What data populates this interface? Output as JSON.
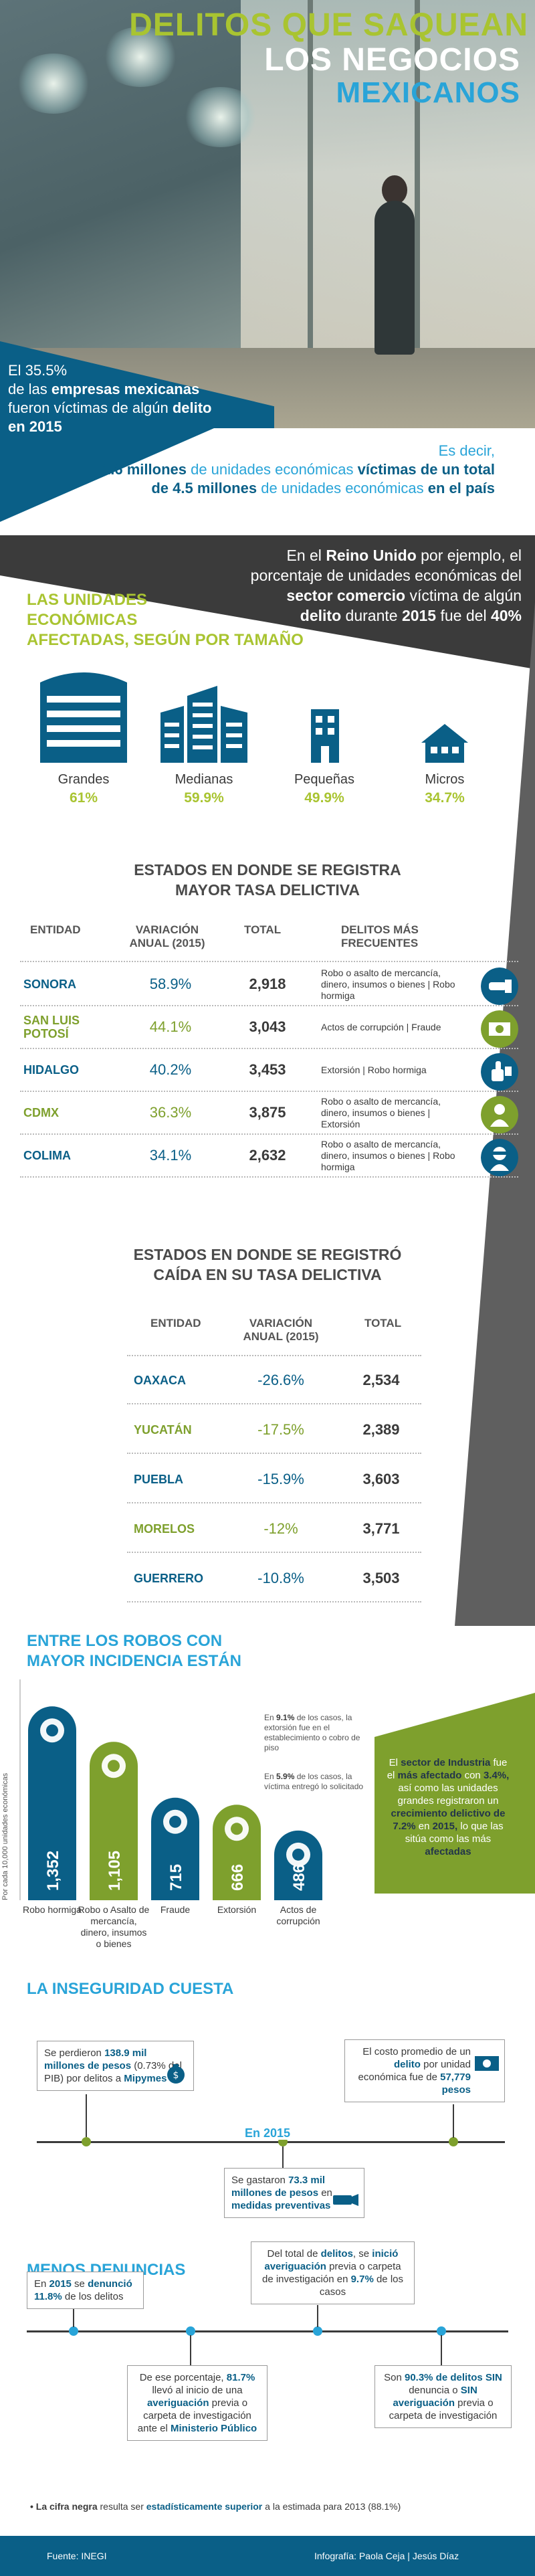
{
  "hero": {
    "title_line1": "DELITOS QUE SAQUEAN",
    "title_line2": "LOS NEGOCIOS",
    "title_line3": "MEXICANOS",
    "stat1_pct": "El 35.5%",
    "stat1_a": "de las ",
    "stat1_b": "empresas mexicanas",
    "stat1_c": " fueron víctimas de algún ",
    "stat1_d": "delito",
    "stat1_e": " en 2015",
    "stat2_a": "Es decir, ",
    "stat2_b": "1.6 millones",
    "stat2_c": " de unidades económicas ",
    "stat2_d": "víctimas de un total de 4.5 millones",
    "stat2_e": " de unidades económicas ",
    "stat2_f": "en el país",
    "stat3_a": "En el ",
    "stat3_b": "Reino Unido",
    "stat3_c": " por ejemplo, el porcentaje de unidades económicas del ",
    "stat3_d": "sector comercio",
    "stat3_e": " víctima de algún ",
    "stat3_f": "delito",
    "stat3_g": " durante ",
    "stat3_h": "2015",
    "stat3_i": " fue del ",
    "stat3_j": "40%"
  },
  "sizes": {
    "title_1": "LAS UNIDADES",
    "title_2": "ECONÓMICAS",
    "title_3": "AFECTADAS, SEGÚN POR TAMAÑO",
    "items": [
      {
        "name": "Grandes",
        "pct": "61%",
        "icon": "large-building-icon"
      },
      {
        "name": "Medianas",
        "pct": "59.9%",
        "icon": "medium-buildings-icon"
      },
      {
        "name": "Pequeñas",
        "pct": "49.9%",
        "icon": "small-building-icon"
      },
      {
        "name": "Micros",
        "pct": "34.7%",
        "icon": "house-icon"
      }
    ]
  },
  "highest": {
    "title_1": "ESTADOS EN DONDE SE REGISTRA",
    "title_2": "MAYOR TASA DELICTIVA",
    "col_entidad": "ENTIDAD",
    "col_var_1": "VARIACIÓN",
    "col_var_2": "ANUAL (2015)",
    "col_total": "TOTAL",
    "col_delitos_1": "DELITOS MÁS",
    "col_delitos_2": "FRECUENTES",
    "rows": [
      {
        "entidad": "SONORA",
        "var": "58.9%",
        "total": "2,918",
        "delitos": "Robo o asalto de mercancía, dinero, insumos o bienes | Robo hormiga",
        "icon": "robber-hand-icon"
      },
      {
        "entidad": "SAN LUIS POTOSÍ",
        "var": "44.1%",
        "total": "3,043",
        "delitos": "Actos de corrupción | Fraude",
        "icon": "money-icon"
      },
      {
        "entidad": "HIDALGO",
        "var": "40.2%",
        "total": "3,453",
        "delitos": "Extorsión | Robo hormiga",
        "icon": "thumbs-up-money-icon"
      },
      {
        "entidad": "CDMX",
        "var": "36.3%",
        "total": "3,875",
        "delitos": "Robo o asalto de mercancía, dinero, insumos o bienes | Extorsión",
        "icon": "person-icon"
      },
      {
        "entidad": "COLIMA",
        "var": "34.1%",
        "total": "2,632",
        "delitos": "Robo o asalto de mercancía, dinero, insumos o bienes | Robo hormiga",
        "icon": "masked-thief-icon"
      }
    ]
  },
  "lowest": {
    "title_1": "ESTADOS EN DONDE SE REGISTRÓ",
    "title_2": "CAÍDA EN SU TASA DELICTIVA",
    "col_entidad": "ENTIDAD",
    "col_var_1": "VARIACIÓN",
    "col_var_2": "ANUAL (2015)",
    "col_total": "TOTAL",
    "rows": [
      {
        "entidad": "OAXACA",
        "var": "-26.6%",
        "total": "2,534"
      },
      {
        "entidad": "YUCATÁN",
        "var": "-17.5%",
        "total": "2,389"
      },
      {
        "entidad": "PUEBLA",
        "var": "-15.9%",
        "total": "3,603"
      },
      {
        "entidad": "MORELOS",
        "var": "-12%",
        "total": "3,771"
      },
      {
        "entidad": "GUERRERO",
        "var": "-10.8%",
        "total": "3,503"
      }
    ]
  },
  "robos": {
    "title_1": "ENTRE LOS ROBOS CON",
    "title_2": "MAYOR INCIDENCIA ESTÁN",
    "axis_label": "Por cada 10,000 unidades económicas",
    "note1_a": "En ",
    "note1_b": "9.1%",
    "note1_c": " de los casos, la extorsión fue en el establecimiento o cobro de piso",
    "note2_a": "En ",
    "note2_b": "5.9%",
    "note2_c": " de los casos, la víctima entregó lo solicitado",
    "side_a": "El ",
    "side_b": "sector de Industria",
    "side_c": " fue el ",
    "side_d": "más afectado",
    "side_e": " con ",
    "side_f": "3.4%,",
    "side_g": " así como las unidades grandes registraron un ",
    "side_h": "crecimiento delictivo de 7.2%",
    "side_i": " en ",
    "side_j": "2015,",
    "side_k": " lo que las sitúa como las más ",
    "side_l": "afectadas"
  },
  "chart_data": {
    "type": "bar",
    "categories": [
      "Robo hormiga",
      "Robo o Asalto de mercancía, dinero, insumos o bienes",
      "Fraude",
      "Extorsión",
      "Actos de corrupción"
    ],
    "values": [
      1352,
      1105,
      715,
      666,
      486
    ],
    "value_labels": [
      "1,352",
      "1,105",
      "715",
      "666",
      "486"
    ],
    "ylabel": "Por cada 10,000 unidades económicas",
    "colors": [
      "#0a5f87",
      "#7ea02d",
      "#0a5f87",
      "#7ea02d",
      "#0a5f87"
    ],
    "icons": [
      "hand-icon",
      "thief-icon",
      "card-icon",
      "money-hand-icon",
      "person-icon"
    ],
    "grid": false
  },
  "inseguridad": {
    "title": "LA INSEGURIDAD CUESTA",
    "box1_a": "Se perdieron ",
    "box1_b": "138.9 mil millones de pesos",
    "box1_c": " (0.73% del PIB) por delitos a ",
    "box1_d": "Mipymes",
    "box2_a": "El costo promedio de un ",
    "box2_b": "delito",
    "box2_c": " por unidad económica fue de ",
    "box2_d": "57,779 pesos",
    "year": "En 2015",
    "box3_a": "Se gastaron ",
    "box3_b": "73.3 mil millones de pesos",
    "box3_c": " en ",
    "box3_d": "medidas preventivas"
  },
  "denuncias": {
    "title": "MENOS DENUNCIAS",
    "box1_a": "En ",
    "box1_b": "2015",
    "box1_c": " se ",
    "box1_d": "denunció 11.8%",
    "box1_e": " de los delitos",
    "box2_a": "Del total de ",
    "box2_b": "delitos",
    "box2_c": ", se ",
    "box2_d": "inició averiguación",
    "box2_e": " previa o carpeta de investigación en ",
    "box2_f": "9.7%",
    "box2_g": " de los casos",
    "box3_a": "De ese porcentaje, ",
    "box3_b": "81.7%",
    "box3_c": " llevó al inicio de una ",
    "box3_d": "averiguación",
    "box3_e": " previa o carpeta de investigación ante el ",
    "box3_f": "Ministerio Público",
    "box4_a": "Son ",
    "box4_b": "90.3% de delitos SIN",
    "box4_c": " denuncia o ",
    "box4_d": "SIN averiguación",
    "box4_e": " previa o carpeta de investigación",
    "foot_a": "• La cifra negra",
    "foot_b": " resulta ser ",
    "foot_c": "estadísticamente superior",
    "foot_d": " a la estimada para 2013 (88.1%)"
  },
  "footer": {
    "source": "Fuente: INEGI",
    "credit": "Infografía: Paola Ceja | Jesús Díaz"
  },
  "colors": {
    "green": "#a9c431",
    "dark_green": "#7ea02d",
    "blue": "#0a5f87",
    "light_blue": "#29a4d8",
    "dark": "#3b3b3b"
  }
}
